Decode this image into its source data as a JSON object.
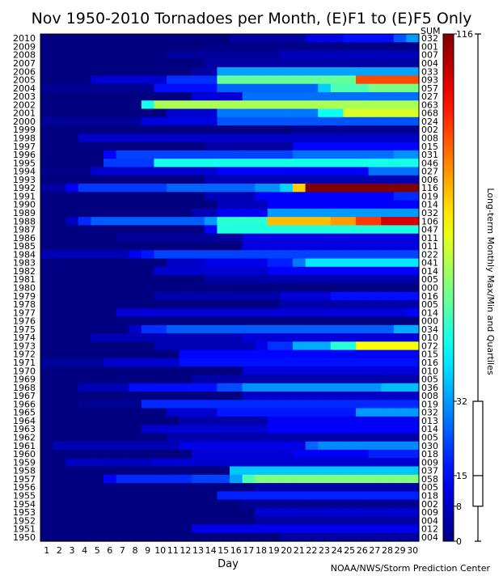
{
  "chart_data": {
    "type": "heatmap",
    "title": "Nov 1950-2010 Tornadoes per Month, (E)F1 to (E)F5 Only",
    "xlabel": "Day",
    "sum_header": "SUM",
    "colorbar_label": "Long-term Monthly Max/Min and Quartiles",
    "credit": "NOAA/NWS/Storm Prediction Center",
    "colormap": "jet",
    "value_range": [
      0,
      116
    ],
    "days": [
      1,
      2,
      3,
      4,
      5,
      6,
      7,
      8,
      9,
      10,
      11,
      12,
      13,
      14,
      15,
      16,
      17,
      18,
      19,
      20,
      21,
      22,
      23,
      24,
      25,
      26,
      27,
      28,
      29,
      30
    ],
    "colorbar_ticks": [
      "0",
      "8",
      "15",
      "32",
      "116"
    ],
    "quartiles": {
      "min": 0,
      "q1": 8,
      "median": 15,
      "q3": 32,
      "max": 116
    },
    "years": [
      {
        "year": "2010",
        "sum": "032",
        "steps": [
          [
            1,
            0
          ],
          [
            16,
            4
          ],
          [
            22,
            12
          ],
          [
            25,
            16
          ],
          [
            29,
            24
          ],
          [
            30,
            32
          ]
        ]
      },
      {
        "year": "2009",
        "sum": "001",
        "steps": [
          [
            1,
            0
          ],
          [
            14,
            1
          ]
        ]
      },
      {
        "year": "2008",
        "sum": "007",
        "steps": [
          [
            1,
            0
          ],
          [
            11,
            3
          ],
          [
            20,
            7
          ]
        ]
      },
      {
        "year": "2007",
        "sum": "004",
        "steps": [
          [
            1,
            0
          ],
          [
            14,
            4
          ]
        ]
      },
      {
        "year": "2006",
        "sum": "033",
        "steps": [
          [
            1,
            0
          ],
          [
            13,
            4
          ],
          [
            15,
            33
          ]
        ]
      },
      {
        "year": "2005",
        "sum": "093",
        "steps": [
          [
            1,
            0
          ],
          [
            5,
            9
          ],
          [
            11,
            20
          ],
          [
            15,
            55
          ],
          [
            26,
            93
          ]
        ]
      },
      {
        "year": "2004",
        "sum": "057",
        "steps": [
          [
            1,
            2
          ],
          [
            10,
            16
          ],
          [
            15,
            26
          ],
          [
            23,
            38
          ],
          [
            24,
            52
          ],
          [
            27,
            57
          ]
        ]
      },
      {
        "year": "2003",
        "sum": "027",
        "steps": [
          [
            1,
            0
          ],
          [
            13,
            10
          ],
          [
            17,
            27
          ]
        ]
      },
      {
        "year": "2002",
        "sum": "063",
        "steps": [
          [
            1,
            0
          ],
          [
            9,
            46
          ],
          [
            10,
            63
          ]
        ]
      },
      {
        "year": "2001",
        "sum": "068",
        "steps": [
          [
            1,
            0
          ],
          [
            11,
            9
          ],
          [
            15,
            28
          ],
          [
            23,
            45
          ],
          [
            25,
            68
          ]
        ]
      },
      {
        "year": "2000",
        "sum": "024",
        "steps": [
          [
            1,
            3
          ],
          [
            9,
            11
          ],
          [
            15,
            24
          ]
        ]
      },
      {
        "year": "1999",
        "sum": "002",
        "steps": [
          [
            1,
            0
          ],
          [
            21,
            2
          ]
        ]
      },
      {
        "year": "1998",
        "sum": "008",
        "steps": [
          [
            1,
            0
          ],
          [
            4,
            8
          ]
        ]
      },
      {
        "year": "1997",
        "sum": "015",
        "steps": [
          [
            1,
            0
          ],
          [
            14,
            4
          ],
          [
            21,
            15
          ]
        ]
      },
      {
        "year": "1996",
        "sum": "031",
        "steps": [
          [
            1,
            0
          ],
          [
            6,
            15
          ],
          [
            7,
            22
          ],
          [
            21,
            27
          ],
          [
            29,
            31
          ]
        ]
      },
      {
        "year": "1995",
        "sum": "046",
        "steps": [
          [
            1,
            0
          ],
          [
            6,
            21
          ],
          [
            10,
            46
          ]
        ]
      },
      {
        "year": "1994",
        "sum": "027",
        "steps": [
          [
            1,
            1
          ],
          [
            5,
            9
          ],
          [
            15,
            14
          ],
          [
            27,
            27
          ]
        ]
      },
      {
        "year": "1993",
        "sum": "006",
        "steps": [
          [
            1,
            0
          ],
          [
            14,
            6
          ]
        ]
      },
      {
        "year": "1992",
        "sum": "116",
        "steps": [
          [
            1,
            4
          ],
          [
            3,
            14
          ],
          [
            4,
            21
          ],
          [
            11,
            26
          ],
          [
            18,
            31
          ],
          [
            20,
            39
          ],
          [
            21,
            78
          ],
          [
            22,
            116
          ]
        ]
      },
      {
        "year": "1991",
        "sum": "019",
        "steps": [
          [
            1,
            0
          ],
          [
            14,
            6
          ],
          [
            18,
            14
          ],
          [
            29,
            19
          ]
        ]
      },
      {
        "year": "1990",
        "sum": "014",
        "steps": [
          [
            1,
            0
          ],
          [
            15,
            7
          ],
          [
            19,
            14
          ]
        ]
      },
      {
        "year": "1989",
        "sum": "032",
        "steps": [
          [
            1,
            0
          ],
          [
            13,
            6
          ],
          [
            15,
            13
          ],
          [
            19,
            32
          ]
        ]
      },
      {
        "year": "1988",
        "sum": "106",
        "steps": [
          [
            1,
            0
          ],
          [
            3,
            7
          ],
          [
            4,
            19
          ],
          [
            5,
            25
          ],
          [
            14,
            32
          ],
          [
            15,
            48
          ],
          [
            19,
            80
          ],
          [
            24,
            84
          ],
          [
            26,
            95
          ],
          [
            28,
            106
          ]
        ]
      },
      {
        "year": "1987",
        "sum": "047",
        "steps": [
          [
            1,
            0
          ],
          [
            14,
            14
          ],
          [
            15,
            47
          ]
        ]
      },
      {
        "year": "1986",
        "sum": "011",
        "steps": [
          [
            1,
            0
          ],
          [
            7,
            3
          ],
          [
            17,
            11
          ]
        ]
      },
      {
        "year": "1985",
        "sum": "011",
        "steps": [
          [
            1,
            0
          ],
          [
            17,
            11
          ]
        ]
      },
      {
        "year": "1984",
        "sum": "022",
        "steps": [
          [
            1,
            6
          ],
          [
            8,
            13
          ],
          [
            9,
            17
          ],
          [
            10,
            22
          ]
        ]
      },
      {
        "year": "1983",
        "sum": "041",
        "steps": [
          [
            1,
            0
          ],
          [
            11,
            8
          ],
          [
            14,
            12
          ],
          [
            19,
            18
          ],
          [
            21,
            28
          ],
          [
            22,
            41
          ]
        ]
      },
      {
        "year": "1982",
        "sum": "014",
        "steps": [
          [
            1,
            0
          ],
          [
            10,
            9
          ],
          [
            19,
            14
          ]
        ]
      },
      {
        "year": "1981",
        "sum": "005",
        "steps": [
          [
            1,
            0
          ],
          [
            14,
            5
          ]
        ]
      },
      {
        "year": "1980",
        "sum": "000",
        "steps": [
          [
            1,
            0
          ]
        ]
      },
      {
        "year": "1979",
        "sum": "016",
        "steps": [
          [
            1,
            0
          ],
          [
            10,
            5
          ],
          [
            20,
            10
          ],
          [
            24,
            16
          ]
        ]
      },
      {
        "year": "1978",
        "sum": "005",
        "steps": [
          [
            1,
            0
          ],
          [
            20,
            5
          ]
        ]
      },
      {
        "year": "1977",
        "sum": "014",
        "steps": [
          [
            1,
            0
          ],
          [
            7,
            10
          ],
          [
            30,
            14
          ]
        ]
      },
      {
        "year": "1976",
        "sum": "000",
        "steps": [
          [
            1,
            0
          ]
        ]
      },
      {
        "year": "1975",
        "sum": "034",
        "steps": [
          [
            1,
            0
          ],
          [
            8,
            8
          ],
          [
            9,
            20
          ],
          [
            11,
            25
          ],
          [
            29,
            34
          ]
        ]
      },
      {
        "year": "1974",
        "sum": "010",
        "steps": [
          [
            1,
            0
          ],
          [
            5,
            6
          ],
          [
            17,
            10
          ]
        ]
      },
      {
        "year": "1973",
        "sum": "072",
        "steps": [
          [
            1,
            0
          ],
          [
            10,
            6
          ],
          [
            18,
            12
          ],
          [
            19,
            20
          ],
          [
            21,
            34
          ],
          [
            24,
            48
          ],
          [
            26,
            72
          ]
        ]
      },
      {
        "year": "1972",
        "sum": "015",
        "steps": [
          [
            1,
            0
          ],
          [
            12,
            15
          ]
        ]
      },
      {
        "year": "1971",
        "sum": "016",
        "steps": [
          [
            1,
            3
          ],
          [
            6,
            9
          ],
          [
            12,
            16
          ]
        ]
      },
      {
        "year": "1970",
        "sum": "010",
        "steps": [
          [
            1,
            0
          ],
          [
            17,
            10
          ]
        ]
      },
      {
        "year": "1969",
        "sum": "005",
        "steps": [
          [
            1,
            0
          ],
          [
            13,
            5
          ]
        ]
      },
      {
        "year": "1968",
        "sum": "036",
        "steps": [
          [
            1,
            0
          ],
          [
            4,
            6
          ],
          [
            8,
            16
          ],
          [
            15,
            23
          ],
          [
            17,
            31
          ],
          [
            28,
            36
          ]
        ]
      },
      {
        "year": "1967",
        "sum": "008",
        "steps": [
          [
            1,
            0
          ],
          [
            17,
            8
          ]
        ]
      },
      {
        "year": "1966",
        "sum": "019",
        "steps": [
          [
            1,
            0
          ],
          [
            4,
            2
          ],
          [
            9,
            19
          ]
        ]
      },
      {
        "year": "1965",
        "sum": "032",
        "steps": [
          [
            1,
            0
          ],
          [
            11,
            9
          ],
          [
            15,
            17
          ],
          [
            26,
            32
          ]
        ]
      },
      {
        "year": "1964",
        "sum": "013",
        "steps": [
          [
            1,
            0
          ],
          [
            12,
            5
          ],
          [
            19,
            13
          ]
        ]
      },
      {
        "year": "1963",
        "sum": "014",
        "steps": [
          [
            1,
            0
          ],
          [
            9,
            9
          ],
          [
            19,
            14
          ]
        ]
      },
      {
        "year": "1962",
        "sum": "005",
        "steps": [
          [
            1,
            0
          ],
          [
            11,
            5
          ]
        ]
      },
      {
        "year": "1961",
        "sum": "030",
        "steps": [
          [
            1,
            0
          ],
          [
            2,
            6
          ],
          [
            12,
            12
          ],
          [
            22,
            26
          ],
          [
            23,
            30
          ]
        ]
      },
      {
        "year": "1960",
        "sum": "018",
        "steps": [
          [
            1,
            0
          ],
          [
            13,
            10
          ],
          [
            21,
            13
          ],
          [
            27,
            18
          ]
        ]
      },
      {
        "year": "1959",
        "sum": "009",
        "steps": [
          [
            1,
            0
          ],
          [
            3,
            7
          ],
          [
            10,
            9
          ]
        ]
      },
      {
        "year": "1958",
        "sum": "037",
        "steps": [
          [
            1,
            0
          ],
          [
            16,
            37
          ]
        ]
      },
      {
        "year": "1957",
        "sum": "058",
        "steps": [
          [
            1,
            0
          ],
          [
            6,
            14
          ],
          [
            7,
            19
          ],
          [
            13,
            22
          ],
          [
            16,
            33
          ],
          [
            17,
            52
          ],
          [
            18,
            58
          ]
        ]
      },
      {
        "year": "1956",
        "sum": "005",
        "steps": [
          [
            1,
            0
          ],
          [
            18,
            5
          ]
        ]
      },
      {
        "year": "1955",
        "sum": "018",
        "steps": [
          [
            1,
            0
          ],
          [
            15,
            18
          ]
        ]
      },
      {
        "year": "1954",
        "sum": "002",
        "steps": [
          [
            1,
            0
          ],
          [
            17,
            2
          ]
        ]
      },
      {
        "year": "1953",
        "sum": "009",
        "steps": [
          [
            1,
            0
          ],
          [
            18,
            9
          ]
        ]
      },
      {
        "year": "1952",
        "sum": "004",
        "steps": [
          [
            1,
            0
          ],
          [
            18,
            4
          ]
        ]
      },
      {
        "year": "1951",
        "sum": "012",
        "steps": [
          [
            1,
            0
          ],
          [
            13,
            12
          ]
        ]
      },
      {
        "year": "1950",
        "sum": "004",
        "steps": [
          [
            1,
            0
          ],
          [
            20,
            4
          ]
        ]
      }
    ]
  }
}
